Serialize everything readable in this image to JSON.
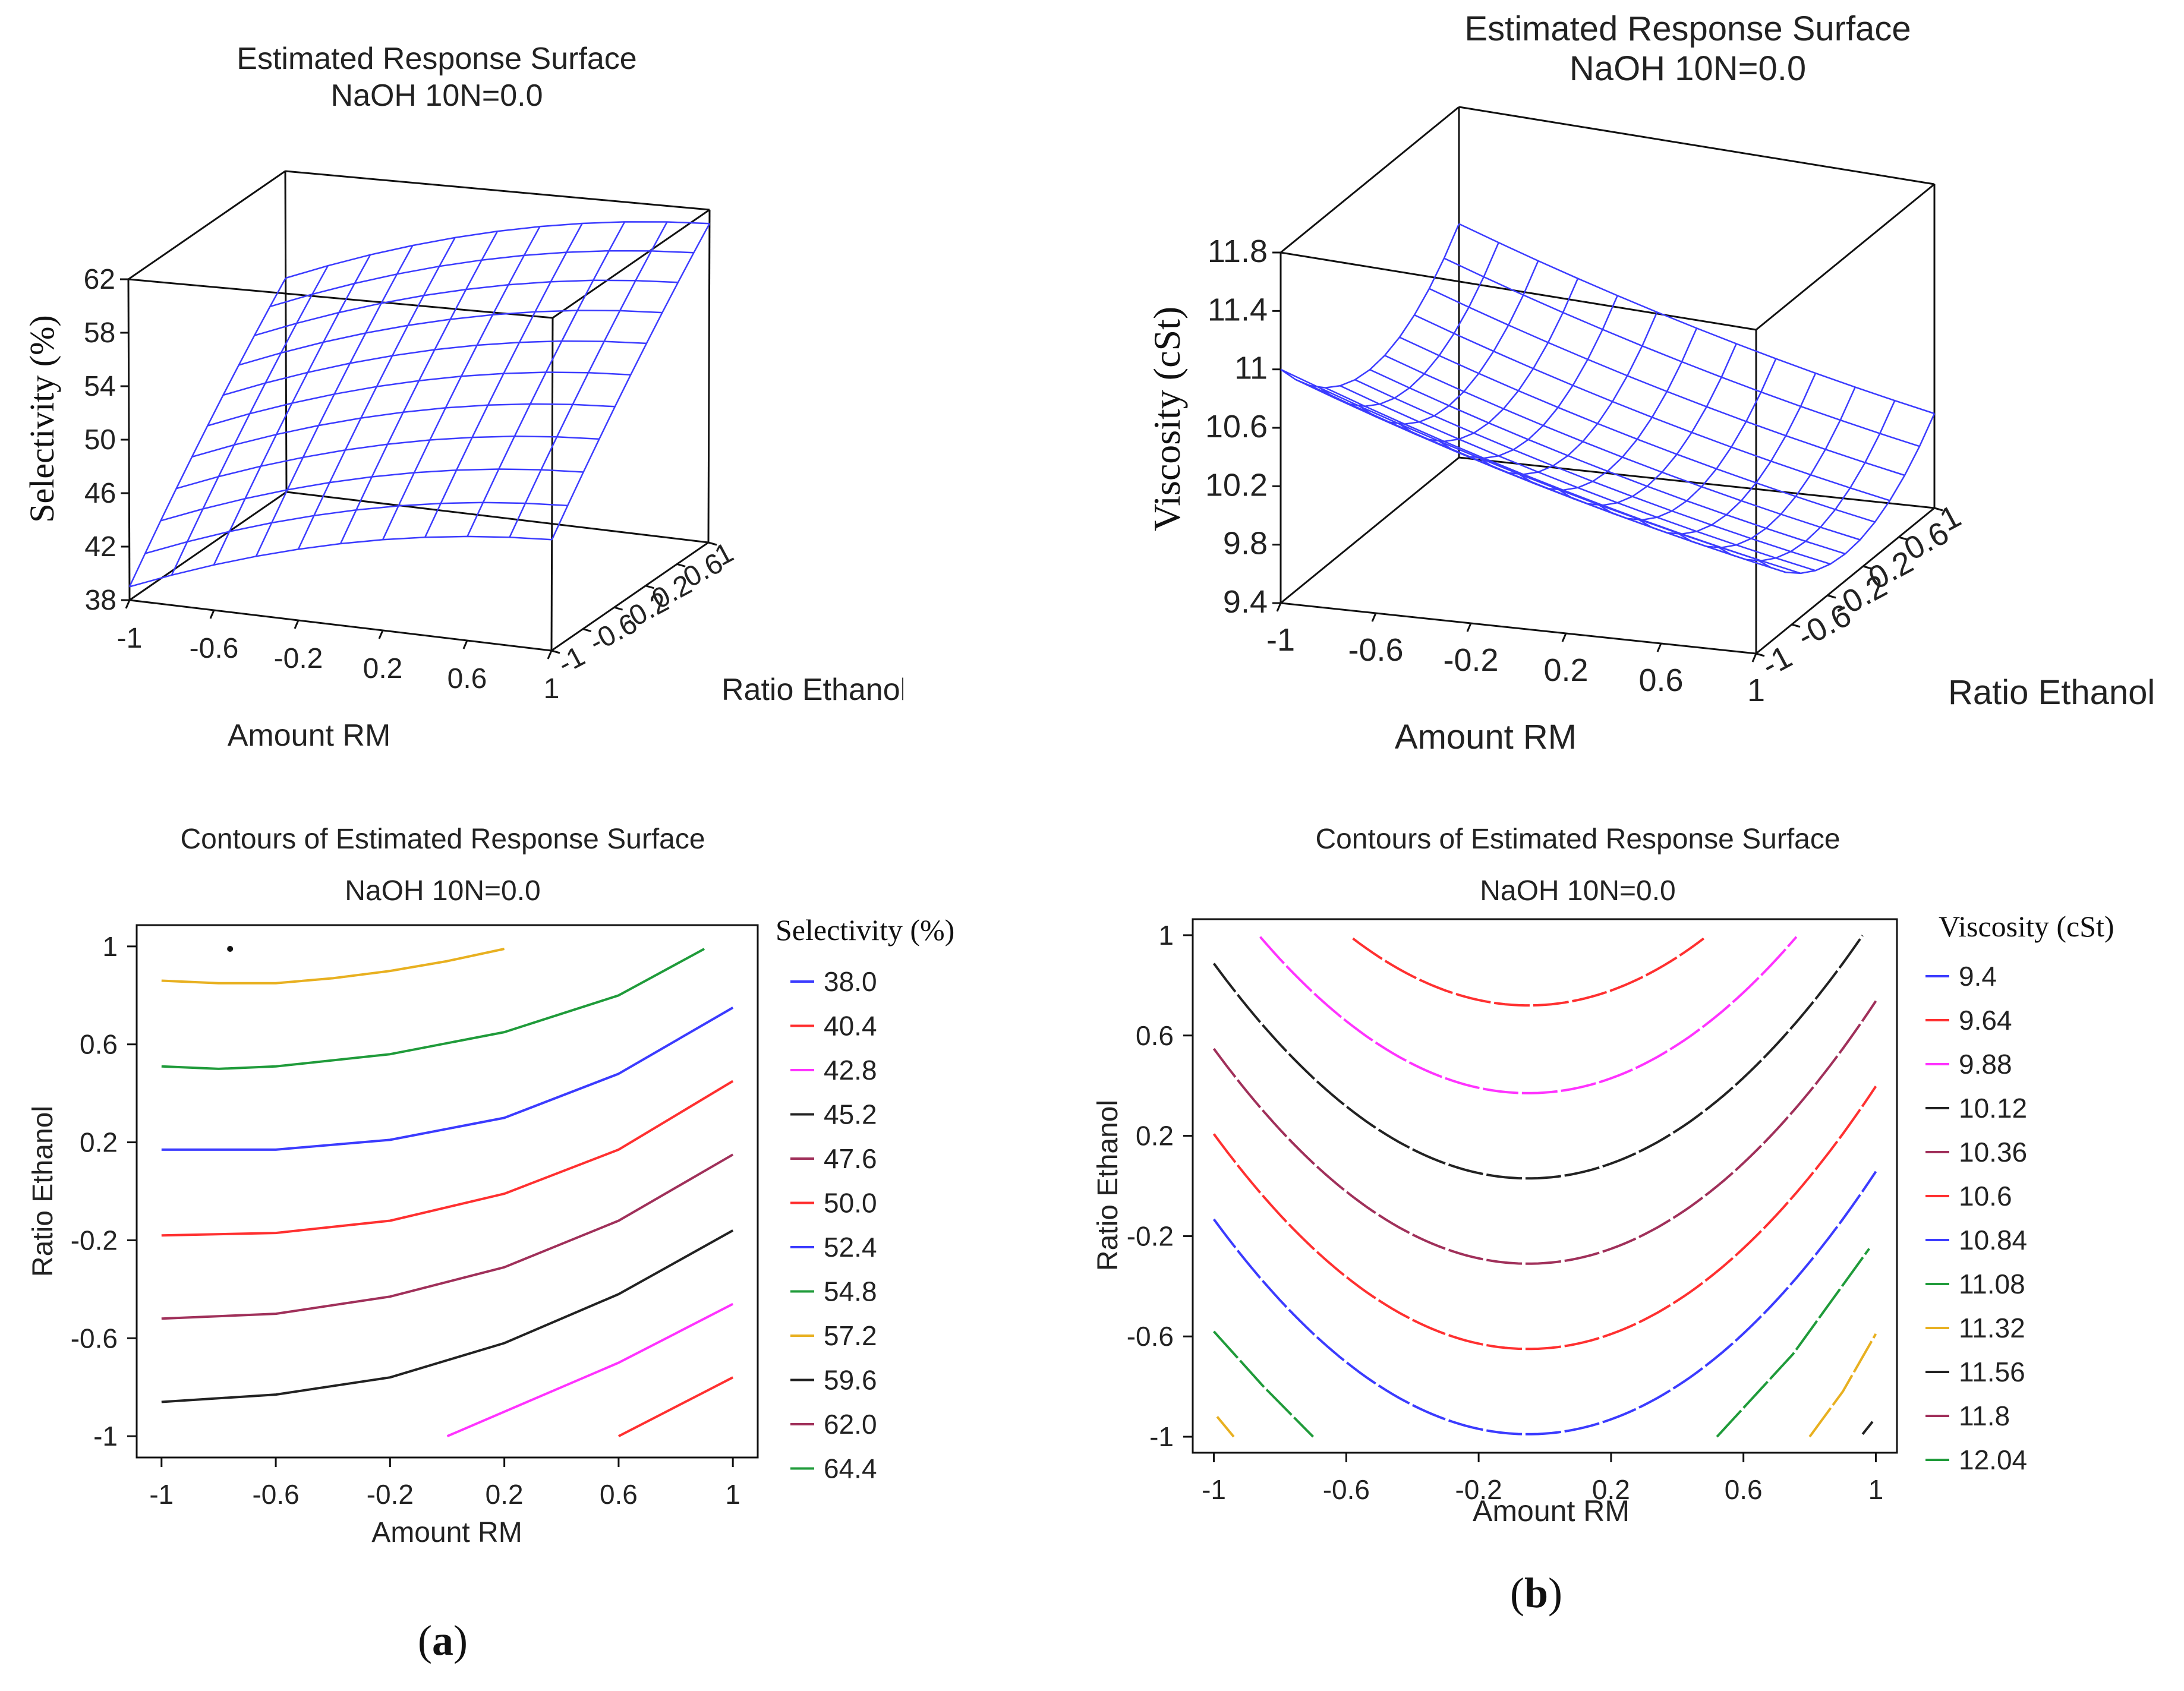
{
  "colors": {
    "surface": "#3b3bff",
    "frame": "#111111"
  },
  "panel_labels": {
    "a": "a",
    "b": "b"
  },
  "chart_data": [
    {
      "id": "surf_a",
      "type": "surface",
      "title": "Estimated Response Surface",
      "subtitle": "NaOH 10N=0.0",
      "xlabel": "Amount RM",
      "ylabel": "Ratio Ethanol",
      "zlabel": "Selectivity (%)",
      "x_ticks": [
        "-1",
        "-0.6",
        "-0.2",
        "0.2",
        "0.6",
        "1"
      ],
      "y_ticks": [
        "-1",
        "-0.6",
        "-0.2",
        "0.2",
        "0.6",
        "1"
      ],
      "z_ticks": [
        "38",
        "42",
        "46",
        "50",
        "54",
        "58",
        "62"
      ],
      "zlim": [
        38,
        62
      ],
      "grid_n": 10,
      "model": "selectivity"
    },
    {
      "id": "surf_b",
      "type": "surface",
      "title": "Estimated Response Surface",
      "subtitle": "NaOH 10N=0.0",
      "xlabel": "Amount RM",
      "ylabel": "Ratio Ethanol",
      "zlabel": "Viscosity (cSt)",
      "x_ticks": [
        "-1",
        "-0.6",
        "-0.2",
        "0.2",
        "0.6",
        "1"
      ],
      "y_ticks": [
        "-1",
        "-0.6",
        "-0.2",
        "0.2",
        "0.6",
        "1"
      ],
      "z_ticks": [
        "9.4",
        "9.8",
        "10.2",
        "10.6",
        "11",
        "11.4",
        "11.8"
      ],
      "zlim": [
        9.4,
        11.8
      ],
      "grid_n": 12,
      "model": "viscosity"
    },
    {
      "id": "cont_a",
      "type": "contour",
      "title": "Contours of Estimated Response Surface",
      "subtitle": "NaOH 10N=0.0",
      "xlabel": "Amount RM",
      "ylabel": "Ratio Ethanol",
      "legend_title": "Selectivity (%)",
      "x_ticks": [
        "-1",
        "-0.6",
        "-0.2",
        "0.2",
        "0.6",
        "1"
      ],
      "y_ticks": [
        "-1",
        "-0.6",
        "-0.2",
        "0.2",
        "0.6",
        "1"
      ],
      "xlim": [
        -1,
        1
      ],
      "ylim": [
        -1,
        1
      ],
      "legend": [
        {
          "label": "38.0",
          "color": "#3b3bff"
        },
        {
          "label": "40.4",
          "color": "#ff3030"
        },
        {
          "label": "42.8",
          "color": "#ff33ff"
        },
        {
          "label": "45.2",
          "color": "#222222"
        },
        {
          "label": "47.6",
          "color": "#a0305a"
        },
        {
          "label": "50.0",
          "color": "#ff3030"
        },
        {
          "label": "52.4",
          "color": "#3b3bff"
        },
        {
          "label": "54.8",
          "color": "#1f9b3a"
        },
        {
          "label": "57.2",
          "color": "#e8b020"
        },
        {
          "label": "59.6",
          "color": "#222222"
        },
        {
          "label": "62.0",
          "color": "#a0305a"
        },
        {
          "label": "64.4",
          "color": "#1f9b3a"
        }
      ],
      "lines": [
        {
          "color": "#ff3030",
          "points": [
            [
              0.6,
              -1.0
            ],
            [
              0.75,
              -0.91
            ],
            [
              0.9,
              -0.82
            ],
            [
              1.0,
              -0.76
            ]
          ]
        },
        {
          "color": "#ff33ff",
          "points": [
            [
              0.0,
              -1.0
            ],
            [
              0.3,
              -0.85
            ],
            [
              0.6,
              -0.7
            ],
            [
              0.8,
              -0.58
            ],
            [
              1.0,
              -0.46
            ]
          ]
        },
        {
          "color": "#222222",
          "points": [
            [
              -1.0,
              -0.86
            ],
            [
              -0.6,
              -0.83
            ],
            [
              -0.2,
              -0.76
            ],
            [
              0.2,
              -0.62
            ],
            [
              0.6,
              -0.42
            ],
            [
              1.0,
              -0.16
            ]
          ]
        },
        {
          "color": "#a0305a",
          "points": [
            [
              -1.0,
              -0.52
            ],
            [
              -0.6,
              -0.5
            ],
            [
              -0.2,
              -0.43
            ],
            [
              0.2,
              -0.31
            ],
            [
              0.6,
              -0.12
            ],
            [
              1.0,
              0.15
            ]
          ]
        },
        {
          "color": "#ff3030",
          "points": [
            [
              -1.0,
              -0.18
            ],
            [
              -0.6,
              -0.17
            ],
            [
              -0.2,
              -0.12
            ],
            [
              0.2,
              -0.01
            ],
            [
              0.6,
              0.17
            ],
            [
              1.0,
              0.45
            ]
          ]
        },
        {
          "color": "#3b3bff",
          "points": [
            [
              -1.0,
              0.17
            ],
            [
              -0.6,
              0.17
            ],
            [
              -0.2,
              0.21
            ],
            [
              0.2,
              0.3
            ],
            [
              0.6,
              0.48
            ],
            [
              1.0,
              0.75
            ]
          ]
        },
        {
          "color": "#1f9b3a",
          "points": [
            [
              -1.0,
              0.51
            ],
            [
              -0.8,
              0.5
            ],
            [
              -0.6,
              0.51
            ],
            [
              -0.2,
              0.56
            ],
            [
              0.2,
              0.65
            ],
            [
              0.6,
              0.8
            ],
            [
              0.9,
              0.99
            ]
          ]
        },
        {
          "color": "#e8b020",
          "points": [
            [
              -1.0,
              0.86
            ],
            [
              -0.8,
              0.85
            ],
            [
              -0.6,
              0.85
            ],
            [
              -0.4,
              0.87
            ],
            [
              -0.2,
              0.9
            ],
            [
              0.0,
              0.94
            ],
            [
              0.2,
              0.99
            ]
          ]
        }
      ],
      "marker": {
        "x": -0.76,
        "y": 0.99
      }
    },
    {
      "id": "cont_b",
      "type": "contour",
      "title": "Contours of Estimated Response Surface",
      "subtitle": "NaOH 10N=0.0",
      "xlabel": "Amount RM",
      "ylabel": "Ratio Ethanol",
      "legend_title": "Viscosity (cSt)",
      "x_ticks": [
        "-1",
        "-0.6",
        "-0.2",
        "0.2",
        "0.6",
        "1"
      ],
      "y_ticks": [
        "-1",
        "-0.6",
        "-0.2",
        "0.2",
        "0.6",
        "1"
      ],
      "xlim": [
        -1,
        1
      ],
      "ylim": [
        -1,
        1
      ],
      "legend": [
        {
          "label": "9.4",
          "color": "#3b3bff"
        },
        {
          "label": "9.64",
          "color": "#ff3030"
        },
        {
          "label": "9.88",
          "color": "#ff33ff"
        },
        {
          "label": "10.12",
          "color": "#222222"
        },
        {
          "label": "10.36",
          "color": "#a0305a"
        },
        {
          "label": "10.6",
          "color": "#ff3030"
        },
        {
          "label": "10.84",
          "color": "#3b3bff"
        },
        {
          "label": "11.08",
          "color": "#1f9b3a"
        },
        {
          "label": "11.32",
          "color": "#e8b020"
        },
        {
          "label": "11.56",
          "color": "#222222"
        },
        {
          "label": "11.8",
          "color": "#a0305a"
        },
        {
          "label": "12.04",
          "color": "#1f9b3a"
        }
      ],
      "parabolas": [
        {
          "color": "#ff3030",
          "vertex": [
            -0.05,
            0.72
          ],
          "k": 0.95,
          "dashed": true
        },
        {
          "color": "#ff33ff",
          "vertex": [
            -0.05,
            0.37
          ],
          "k": 0.95,
          "dashed": true
        },
        {
          "color": "#222222",
          "vertex": [
            -0.05,
            0.03
          ],
          "k": 0.95,
          "dashed": true
        },
        {
          "color": "#a0305a",
          "vertex": [
            -0.05,
            -0.31
          ],
          "k": 0.95,
          "dashed": true
        },
        {
          "color": "#ff3030",
          "vertex": [
            -0.05,
            -0.65
          ],
          "k": 0.95,
          "dashed": true
        },
        {
          "color": "#3b3bff",
          "vertex": [
            -0.05,
            -0.99
          ],
          "k": 0.95,
          "dashed": true
        }
      ],
      "lines": [
        {
          "color": "#1f9b3a",
          "dashed": true,
          "points": [
            [
              -1.0,
              -0.58
            ],
            [
              -0.85,
              -0.8
            ],
            [
              -0.7,
              -1.0
            ]
          ]
        },
        {
          "color": "#e8b020",
          "dashed": true,
          "points": [
            [
              -0.99,
              -0.92
            ],
            [
              -0.94,
              -1.0
            ]
          ]
        },
        {
          "color": "#1f9b3a",
          "dashed": true,
          "points": [
            [
              0.52,
              -1.0
            ],
            [
              0.75,
              -0.67
            ],
            [
              0.98,
              -0.25
            ]
          ]
        },
        {
          "color": "#e8b020",
          "dashed": true,
          "points": [
            [
              0.8,
              -1.0
            ],
            [
              0.9,
              -0.82
            ],
            [
              1.0,
              -0.59
            ]
          ]
        },
        {
          "color": "#222222",
          "dashed": true,
          "points": [
            [
              0.96,
              -0.99
            ],
            [
              0.99,
              -0.94
            ]
          ]
        }
      ]
    }
  ]
}
